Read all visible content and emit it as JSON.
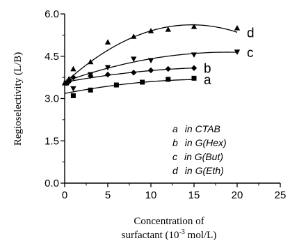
{
  "chart_data": {
    "type": "scatter",
    "xlabel_line1": "Concentration of",
    "xlabel_line2": "surfactant (10",
    "xlabel_sup": "-3",
    "xlabel_tail": " mol/L)",
    "ylabel": "Regioselectivity (L/B)",
    "xlim": [
      0,
      25
    ],
    "ylim": [
      0,
      6
    ],
    "xticks": [
      "0",
      "5",
      "10",
      "15",
      "20",
      "25"
    ],
    "yticks": [
      "0.0",
      "1.5",
      "3.0",
      "4.5",
      "6.0"
    ],
    "legend": [
      {
        "letter": "a",
        "text": "in CTAB"
      },
      {
        "letter": "b",
        "text": "in G(Hex)"
      },
      {
        "letter": "c",
        "text": "in G(But)"
      },
      {
        "letter": "d",
        "text": "in G(Eth)"
      }
    ],
    "series": [
      {
        "name": "a",
        "marker": "square",
        "x": [
          0.2,
          1,
          3,
          6,
          9,
          12,
          15
        ],
        "y": [
          3.55,
          3.1,
          3.3,
          3.48,
          3.58,
          3.68,
          3.72
        ],
        "fit": [
          3.18,
          0.06,
          -0.0018
        ]
      },
      {
        "name": "b",
        "marker": "diamond",
        "x": [
          0.2,
          0.5,
          1,
          3,
          5,
          8,
          10,
          12,
          15
        ],
        "y": [
          3.55,
          3.6,
          3.75,
          3.8,
          3.85,
          3.92,
          4.0,
          4.05,
          4.08
        ],
        "fit": [
          3.58,
          0.056,
          -0.0015
        ]
      },
      {
        "name": "c",
        "marker": "triangle-down",
        "x": [
          0.2,
          0.5,
          1,
          3,
          5,
          8,
          10,
          15,
          20
        ],
        "y": [
          3.55,
          3.6,
          3.35,
          3.85,
          4.1,
          4.4,
          4.35,
          4.55,
          4.65
        ],
        "fit": [
          3.6,
          0.11,
          -0.0029
        ]
      },
      {
        "name": "d",
        "marker": "triangle-up",
        "x": [
          0,
          0.5,
          1,
          3,
          5,
          8,
          10,
          12,
          15,
          20
        ],
        "y": [
          3.55,
          3.7,
          4.05,
          4.3,
          5.0,
          5.2,
          5.4,
          5.45,
          5.55,
          5.5
        ],
        "fit": [
          3.55,
          0.28,
          -0.0095
        ]
      }
    ]
  }
}
